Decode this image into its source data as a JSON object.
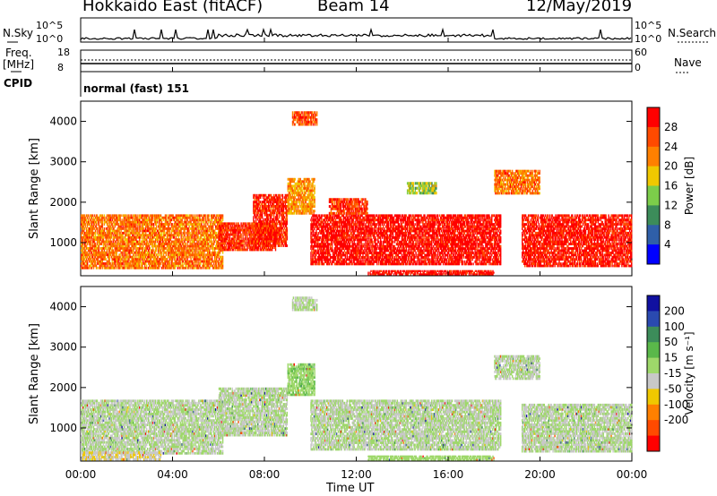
{
  "header": {
    "station": "Hokkaido East (fitACF)",
    "beam": "Beam 14",
    "date": "12/May/2019"
  },
  "top_panels": {
    "nsky_label": "N.Sky",
    "nsky_ticks": [
      "10^5",
      "10^0"
    ],
    "nsearch_label": "N.Search",
    "nsearch_ticks": [
      "10^5",
      "10^0"
    ],
    "freq_label_1": "Freq.",
    "freq_label_2": "[MHz]",
    "freq_ticks": [
      "18",
      "8"
    ],
    "nave_label": "Nave",
    "nave_ticks": [
      "60",
      "0"
    ],
    "cpid_label": "CPID",
    "cpid_value": "normal (fast) 151"
  },
  "x_axis": {
    "label": "Time UT",
    "ticks": [
      "00:00",
      "04:00",
      "08:00",
      "12:00",
      "16:00",
      "20:00",
      "00:00"
    ]
  },
  "chart_data": [
    {
      "type": "heatmap",
      "title": "",
      "ylabel": "Slant Range [km]",
      "xlabel": "Time UT",
      "yticks": [
        "1000",
        "2000",
        "3000",
        "4000"
      ],
      "ylim": [
        180,
        4500
      ],
      "xlim": [
        "00:00",
        "24:00"
      ],
      "colorbar": {
        "label": "Power [dB]",
        "ticks": [
          "4",
          "8",
          "12",
          "16",
          "20",
          "24",
          "28"
        ],
        "colors": [
          "#0000ff",
          "#2f5fa8",
          "#3c8c5a",
          "#7ccd4a",
          "#f0c800",
          "#ff8000",
          "#ff4a00",
          "#ff0000"
        ],
        "range": [
          0,
          30
        ]
      },
      "regions": [
        {
          "t": [
            0.0,
            6.2
          ],
          "r": [
            350,
            1700
          ],
          "value": 22
        },
        {
          "t": [
            6.0,
            8.5
          ],
          "r": [
            800,
            1500
          ],
          "value": 26
        },
        {
          "t": [
            7.5,
            9.0
          ],
          "r": [
            900,
            2200
          ],
          "value": 27
        },
        {
          "t": [
            9.0,
            10.2
          ],
          "r": [
            1700,
            2600
          ],
          "value": 20
        },
        {
          "t": [
            10.0,
            18.3
          ],
          "r": [
            450,
            1700
          ],
          "value": 29
        },
        {
          "t": [
            10.8,
            12.5
          ],
          "r": [
            1700,
            2100
          ],
          "value": 26
        },
        {
          "t": [
            14.2,
            15.5
          ],
          "r": [
            2200,
            2500
          ],
          "value": 14
        },
        {
          "t": [
            18.0,
            20.0
          ],
          "r": [
            2200,
            2800
          ],
          "value": 22
        },
        {
          "t": [
            19.2,
            24.0
          ],
          "r": [
            400,
            1700
          ],
          "value": 28
        },
        {
          "t": [
            9.2,
            10.3
          ],
          "r": [
            3900,
            4250
          ],
          "value": 24
        },
        {
          "t": [
            12.5,
            18.0
          ],
          "r": [
            200,
            320
          ],
          "value": 29
        }
      ]
    },
    {
      "type": "heatmap",
      "title": "",
      "ylabel": "Slant Range [km]",
      "xlabel": "Time UT",
      "yticks": [
        "1000",
        "2000",
        "3000",
        "4000"
      ],
      "ylim": [
        180,
        4500
      ],
      "xlim": [
        "00:00",
        "24:00"
      ],
      "colorbar": {
        "label": "Velocity [m s⁻¹]",
        "ticks": [
          "200",
          "100",
          "50",
          "15",
          "-15",
          "-50",
          "-100",
          "-200"
        ],
        "colors": [
          "#1010a0",
          "#2a4ab0",
          "#3c8c5a",
          "#5ab84a",
          "#9ed86a",
          "#c8c8c8",
          "#f0c800",
          "#ff8000",
          "#ff4a00",
          "#ff0000"
        ],
        "range": [
          -250,
          250
        ]
      },
      "regions": [
        {
          "t": [
            0.0,
            6.2
          ],
          "r": [
            350,
            1700
          ],
          "value": 0
        },
        {
          "t": [
            6.0,
            9.0
          ],
          "r": [
            800,
            2000
          ],
          "value": 0
        },
        {
          "t": [
            9.0,
            10.2
          ],
          "r": [
            1800,
            2600
          ],
          "value": 40
        },
        {
          "t": [
            10.0,
            18.3
          ],
          "r": [
            450,
            1700
          ],
          "value": 0
        },
        {
          "t": [
            18.0,
            20.0
          ],
          "r": [
            2200,
            2800
          ],
          "value": 0
        },
        {
          "t": [
            19.2,
            24.0
          ],
          "r": [
            400,
            1600
          ],
          "value": 0
        },
        {
          "t": [
            0.0,
            3.5
          ],
          "r": [
            200,
            420
          ],
          "value": -40
        },
        {
          "t": [
            12.5,
            18.0
          ],
          "r": [
            200,
            320
          ],
          "value": 30
        },
        {
          "t": [
            9.2,
            10.3
          ],
          "r": [
            3900,
            4250
          ],
          "value": 0
        }
      ]
    }
  ]
}
